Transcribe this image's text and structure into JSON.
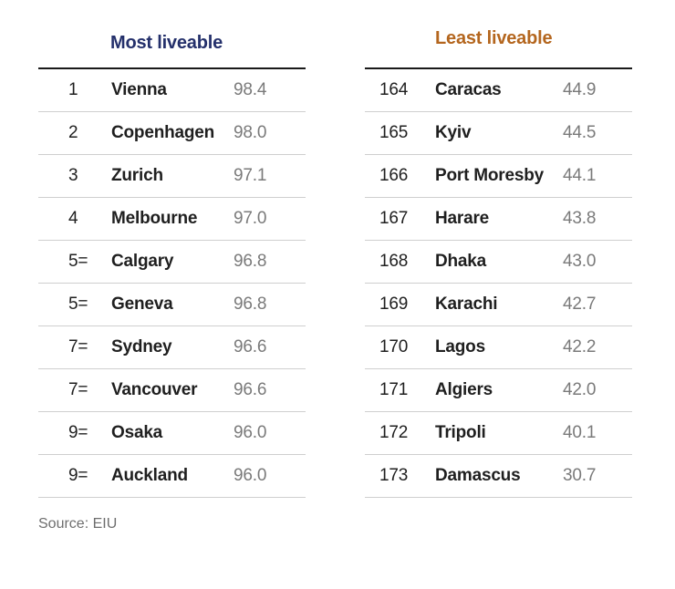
{
  "chart_data": {
    "type": "table",
    "tables": [
      {
        "title": "Most liveable",
        "title_color": "#24306b",
        "rows": [
          {
            "rank": "1",
            "city": "Vienna",
            "score": "98.4"
          },
          {
            "rank": "2",
            "city": "Copenhagen",
            "score": "98.0"
          },
          {
            "rank": "3",
            "city": "Zurich",
            "score": "97.1"
          },
          {
            "rank": "4",
            "city": "Melbourne",
            "score": "97.0"
          },
          {
            "rank": "5=",
            "city": "Calgary",
            "score": "96.8"
          },
          {
            "rank": "5=",
            "city": "Geneva",
            "score": "96.8"
          },
          {
            "rank": "7=",
            "city": "Sydney",
            "score": "96.6"
          },
          {
            "rank": "7=",
            "city": "Vancouver",
            "score": "96.6"
          },
          {
            "rank": "9=",
            "city": "Osaka",
            "score": "96.0"
          },
          {
            "rank": "9=",
            "city": "Auckland",
            "score": "96.0"
          }
        ]
      },
      {
        "title": "Least liveable",
        "title_color": "#b4661e",
        "rows": [
          {
            "rank": "164",
            "city": "Caracas",
            "score": "44.9"
          },
          {
            "rank": "165",
            "city": "Kyiv",
            "score": "44.5"
          },
          {
            "rank": "166",
            "city": "Port Moresby",
            "score": "44.1"
          },
          {
            "rank": "167",
            "city": "Harare",
            "score": "43.8"
          },
          {
            "rank": "168",
            "city": "Dhaka",
            "score": "43.0"
          },
          {
            "rank": "169",
            "city": "Karachi",
            "score": "42.7"
          },
          {
            "rank": "170",
            "city": "Lagos",
            "score": "42.2"
          },
          {
            "rank": "171",
            "city": "Algiers",
            "score": "42.0"
          },
          {
            "rank": "172",
            "city": "Tripoli",
            "score": "40.1"
          },
          {
            "rank": "173",
            "city": "Damascus",
            "score": "30.7"
          }
        ]
      }
    ],
    "source": "Source: EIU"
  }
}
